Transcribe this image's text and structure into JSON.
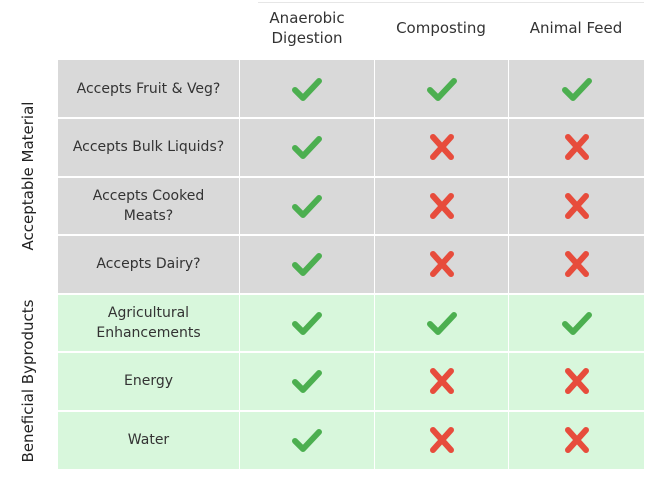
{
  "columns": [
    "Anaerobic\nDigestion",
    "Composting",
    "Animal Feed"
  ],
  "groups": [
    {
      "label": "Acceptable Material",
      "color": "#d9d9d9"
    },
    {
      "label": "Beneficial Byproducts",
      "color": "#d8f7dc"
    }
  ],
  "rows": [
    {
      "label": "Accepts Fruit & Veg?",
      "group": 0,
      "values": [
        "check",
        "check",
        "check"
      ]
    },
    {
      "label": "Accepts Bulk Liquids?",
      "group": 0,
      "values": [
        "check",
        "cross",
        "cross"
      ]
    },
    {
      "label": "Accepts Cooked\nMeats?",
      "group": 0,
      "values": [
        "check",
        "cross",
        "cross"
      ]
    },
    {
      "label": "Accepts Dairy?",
      "group": 0,
      "values": [
        "check",
        "cross",
        "cross"
      ]
    },
    {
      "label": "Agricultural\nEnhancements",
      "group": 1,
      "values": [
        "check",
        "check",
        "check"
      ]
    },
    {
      "label": "Energy",
      "group": 1,
      "values": [
        "check",
        "cross",
        "cross"
      ]
    },
    {
      "label": "Water",
      "group": 1,
      "values": [
        "check",
        "cross",
        "cross"
      ]
    }
  ],
  "icon_colors": {
    "check": "#4caf50",
    "cross": "#e74c3c"
  }
}
